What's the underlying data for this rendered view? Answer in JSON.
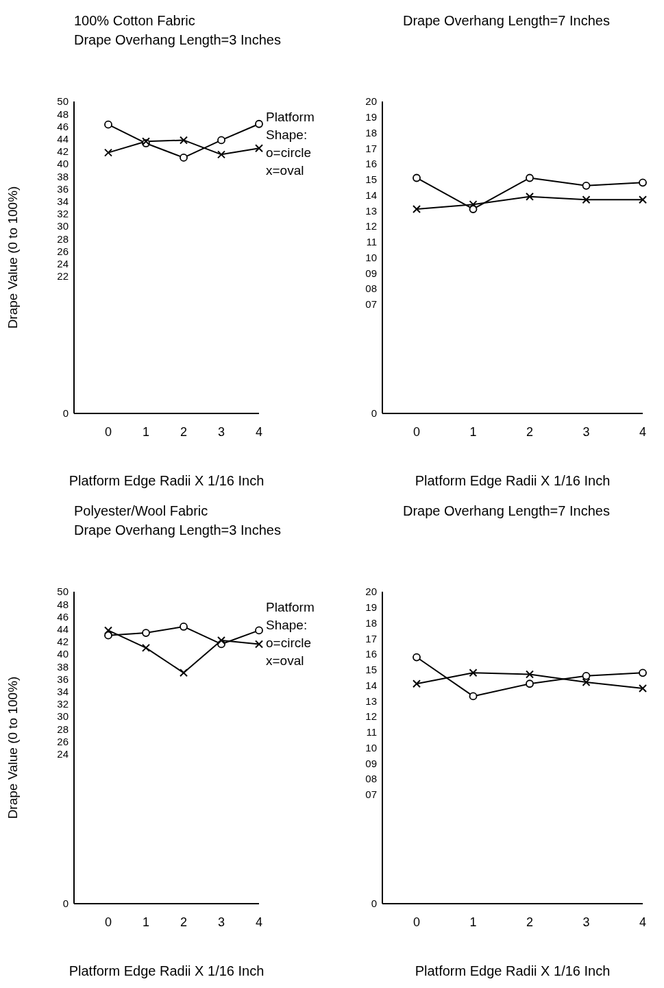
{
  "chart_data": [
    {
      "type": "line",
      "title": "100% Cotton Fabric",
      "subtitle": "Drape Overhang Length=3 Inches",
      "xlabel": "Platform Edge Radii X 1/16 Inch",
      "ylabel": "Drape Value (0 to 100%)",
      "legend_title": "Platform Shape:",
      "legend": "top right",
      "categories": [
        "0",
        "1",
        "2",
        "3",
        "4"
      ],
      "ylim": [
        0,
        50
      ],
      "yticks": [
        0,
        22,
        24,
        26,
        28,
        30,
        32,
        34,
        36,
        38,
        40,
        42,
        44,
        46,
        48,
        50
      ],
      "series": [
        {
          "name": "o=circle",
          "color": "#000000",
          "marker": "circle",
          "values": [
            46.3,
            43.3,
            41.0,
            43.8,
            46.4
          ]
        },
        {
          "name": "x=oval",
          "color": "#000000",
          "marker": "cross",
          "values": [
            41.8,
            43.6,
            43.8,
            41.5,
            42.5
          ]
        }
      ]
    },
    {
      "type": "line",
      "title": "Drape Overhang Length=7 Inches",
      "xlabel": "Platform Edge Radii X 1/16 Inch",
      "categories": [
        "0",
        "1",
        "2",
        "3",
        "4"
      ],
      "ylim": [
        0,
        20
      ],
      "yticks": [
        0,
        {
          "value": 7,
          "label": "07"
        },
        {
          "value": 8,
          "label": "08"
        },
        {
          "value": 9,
          "label": "09"
        },
        10,
        11,
        12,
        13,
        14,
        15,
        16,
        17,
        18,
        19,
        20
      ],
      "series": [
        {
          "color": "#000000",
          "marker": "circle",
          "values": [
            15.1,
            13.1,
            15.1,
            14.6,
            14.8
          ]
        },
        {
          "color": "#000000",
          "marker": "cross",
          "values": [
            13.1,
            13.4,
            13.9,
            13.7,
            13.7
          ]
        }
      ]
    },
    {
      "type": "line",
      "title": "Polyester/Wool Fabric",
      "subtitle": "Drape Overhang Length=3 Inches",
      "xlabel": "Platform Edge Radii X 1/16 Inch",
      "ylabel": "Drape Value (0 to 100%)",
      "legend_title": "Platform Shape:",
      "legend": "top right",
      "categories": [
        "0",
        "1",
        "2",
        "3",
        "4"
      ],
      "ylim": [
        0,
        50
      ],
      "yticks": [
        0,
        24,
        26,
        28,
        30,
        32,
        34,
        36,
        38,
        40,
        42,
        44,
        46,
        48,
        50
      ],
      "series": [
        {
          "name": "o=circle",
          "color": "#000000",
          "marker": "circle",
          "values": [
            43.0,
            43.4,
            44.4,
            41.6,
            43.8
          ]
        },
        {
          "name": "x=oval",
          "color": "#000000",
          "marker": "cross",
          "values": [
            43.8,
            41.0,
            37.0,
            42.2,
            41.6
          ]
        }
      ]
    },
    {
      "type": "line",
      "title": "Drape Overhang Length=7 Inches",
      "xlabel": "Platform Edge Radii X 1/16 Inch",
      "categories": [
        "0",
        "1",
        "2",
        "3",
        "4"
      ],
      "ylim": [
        0,
        20
      ],
      "yticks": [
        0,
        {
          "value": 7,
          "label": "07"
        },
        {
          "value": 8,
          "label": "08"
        },
        {
          "value": 9,
          "label": "09"
        },
        10,
        11,
        12,
        13,
        14,
        15,
        16,
        17,
        18,
        19,
        20
      ],
      "series": [
        {
          "color": "#000000",
          "marker": "circle",
          "values": [
            15.8,
            13.3,
            14.1,
            14.6,
            14.8
          ]
        },
        {
          "color": "#000000",
          "marker": "cross",
          "values": [
            14.1,
            14.8,
            14.7,
            14.2,
            13.8
          ]
        }
      ]
    }
  ]
}
